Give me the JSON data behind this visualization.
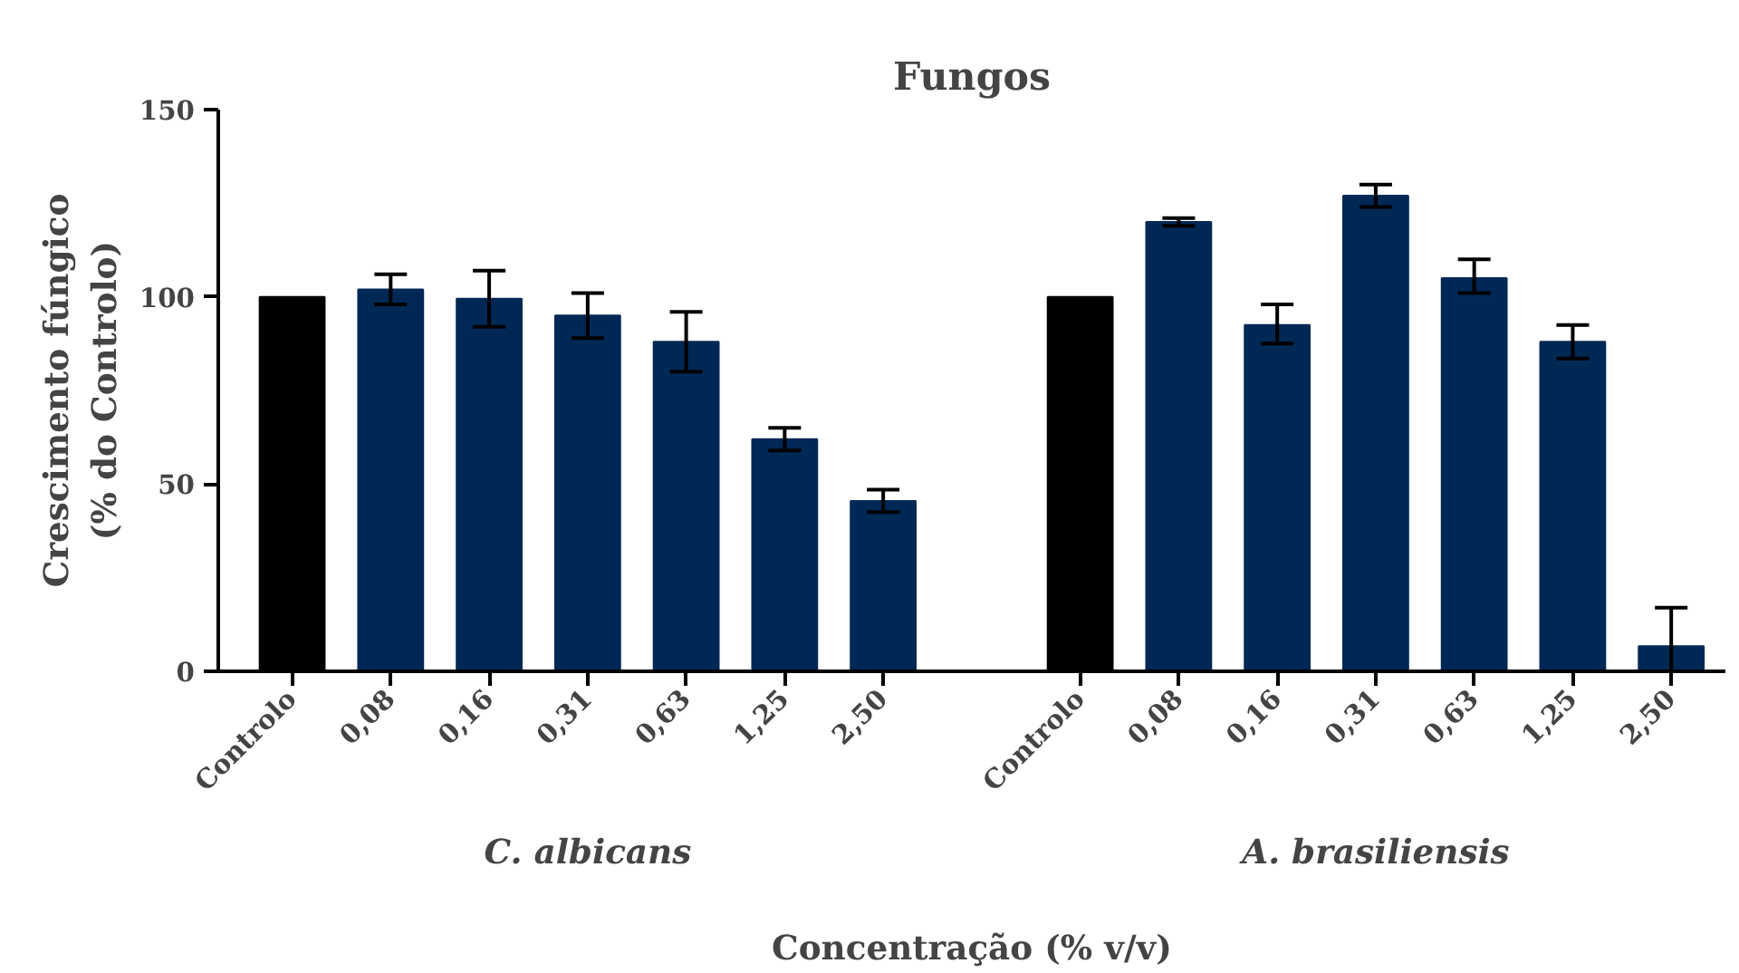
{
  "chart_data": {
    "type": "bar",
    "title": "Fungos",
    "xlabel": "Concentração (% v/v)",
    "ylabel": "Crescimento fúngico\n(% do Controlo)",
    "categories": [
      "Controlo",
      "0,08",
      "0,16",
      "0,31",
      "0,63",
      "1,25",
      "2,50",
      null,
      "Controlo",
      "0,08",
      "0,16",
      "0,31",
      "0,63",
      "1,25",
      "2,50"
    ],
    "values": [
      100,
      102,
      99.5,
      95,
      88,
      62,
      45.5,
      null,
      100,
      120,
      92.5,
      127,
      105,
      88,
      6.7
    ],
    "colors": [
      "#000000",
      "#002855",
      "#002855",
      "#002855",
      "#002855",
      "#002855",
      "#002855",
      null,
      "#000000",
      "#002855",
      "#002855",
      "#002855",
      "#002855",
      "#002855",
      "#002855"
    ],
    "errors": [
      null,
      [
        98,
        106
      ],
      [
        92,
        107
      ],
      [
        89,
        101
      ],
      [
        80,
        96
      ],
      [
        59,
        65
      ],
      [
        42.5,
        48.5
      ],
      null,
      null,
      [
        119,
        121
      ],
      [
        87.5,
        98
      ],
      [
        124,
        130
      ],
      [
        101,
        110
      ],
      [
        83.5,
        92.5
      ],
      [
        0,
        17
      ]
    ],
    "annotations": [
      "C. albicans",
      "A. brasiliensis"
    ],
    "ylim": [
      0,
      150
    ],
    "yticks": [
      0,
      50,
      100,
      150
    ],
    "grid": false
  }
}
